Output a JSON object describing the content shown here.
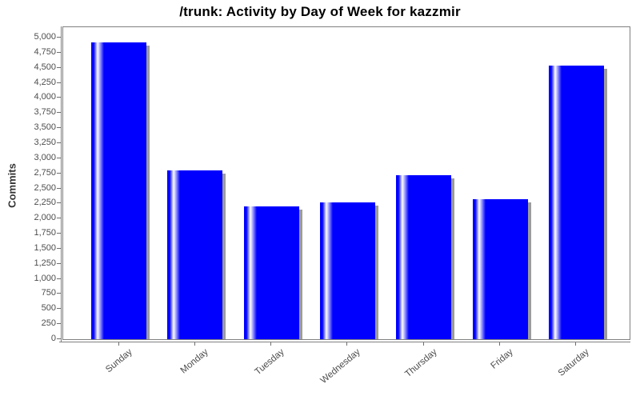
{
  "chart_data": {
    "type": "bar",
    "title": "/trunk: Activity by Day of Week for kazzmir",
    "ylabel": "Commits",
    "xlabel": "",
    "categories": [
      "Sunday",
      "Monday",
      "Tuesday",
      "Wednesday",
      "Thursday",
      "Friday",
      "Saturday"
    ],
    "values": [
      4920,
      2800,
      2200,
      2270,
      2720,
      2325,
      4535
    ],
    "ylim": [
      0,
      5250
    ],
    "ytick_step": 250,
    "ytick_max": 5000,
    "grid": false,
    "legend": false,
    "colors": {
      "bar": "#0000ff",
      "bar_highlight": "#ffffff",
      "shadow": "#9c9c9c",
      "axis": "#808080",
      "tick_label": "#4d4d4d",
      "title": "#000000",
      "background": "#ffffff"
    }
  }
}
